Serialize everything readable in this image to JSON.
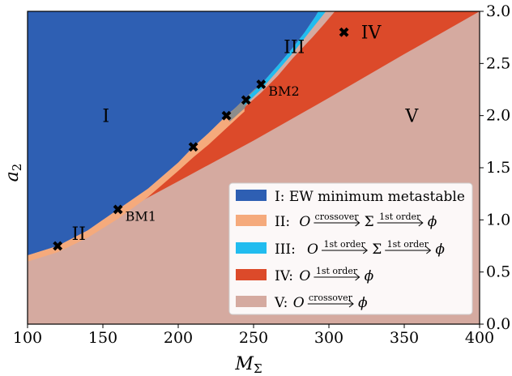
{
  "chart_data": {
    "type": "area",
    "xlabel": "M",
    "xlabel_sub": "Σ",
    "ylabel": "a",
    "ylabel_sub": "2",
    "xlim": [
      100,
      400
    ],
    "ylim": [
      0.0,
      3.0
    ],
    "xticks": [
      "100",
      "150",
      "200",
      "250",
      "300",
      "350",
      "400"
    ],
    "yticks": [
      "0.0",
      "0.5",
      "1.0",
      "1.5",
      "2.0",
      "2.5",
      "3.0"
    ],
    "colors": {
      "I": "#2e5fb3",
      "II": "#f5aa7c",
      "III": "#21bcef",
      "IV": "#dc4a2a",
      "V": "#d5aaa0",
      "marker": "#000000"
    },
    "region_labels": [
      {
        "text": "I",
        "x": 152,
        "y": 2.0
      },
      {
        "text": "II",
        "x": 134,
        "y": 0.87
      },
      {
        "text": "III",
        "x": 277,
        "y": 2.66
      },
      {
        "text": "IV",
        "x": 328,
        "y": 2.8
      },
      {
        "text": "V",
        "x": 355,
        "y": 2.0
      }
    ],
    "boundaries": {
      "upper": [
        [
          100,
          0.66
        ],
        [
          120,
          0.75
        ],
        [
          140,
          0.9
        ],
        [
          160,
          1.1
        ],
        [
          180,
          1.3
        ],
        [
          200,
          1.55
        ],
        [
          210,
          1.7
        ],
        [
          220,
          1.83
        ],
        [
          232,
          2.0
        ],
        [
          244,
          2.15
        ],
        [
          255,
          2.3
        ],
        [
          266,
          2.48
        ],
        [
          276,
          2.65
        ],
        [
          284,
          2.8
        ],
        [
          291,
          2.95
        ],
        [
          293,
          3.0
        ]
      ],
      "blue_cyan": [
        [
          232,
          2.0
        ],
        [
          244,
          2.17
        ],
        [
          255,
          2.33
        ],
        [
          266,
          2.51
        ],
        [
          276,
          2.7
        ],
        [
          284,
          2.86
        ],
        [
          291,
          3.0
        ]
      ],
      "cyan_red": [
        [
          232,
          1.96
        ],
        [
          244,
          2.1
        ],
        [
          255,
          2.25
        ],
        [
          266,
          2.43
        ],
        [
          276,
          2.6
        ],
        [
          287,
          2.8
        ],
        [
          298,
          3.0
        ]
      ],
      "orange_red": [
        [
          160,
          1.1
        ],
        [
          180,
          1.28
        ],
        [
          200,
          1.5
        ],
        [
          210,
          1.63
        ],
        [
          220,
          1.75
        ],
        [
          232,
          1.92
        ],
        [
          244,
          2.08
        ],
        [
          255,
          2.22
        ],
        [
          266,
          2.38
        ],
        [
          276,
          2.55
        ],
        [
          289,
          2.75
        ],
        [
          297,
          2.88
        ],
        [
          304,
          3.0
        ]
      ],
      "upper_orange_lower": [
        [
          100,
          0.6
        ],
        [
          120,
          0.69
        ],
        [
          140,
          0.83
        ],
        [
          160,
          1.01
        ],
        [
          180,
          1.22
        ],
        [
          200,
          1.47
        ],
        [
          210,
          1.6
        ],
        [
          220,
          1.72
        ],
        [
          232,
          1.88
        ],
        [
          244,
          2.04
        ],
        [
          255,
          2.19
        ],
        [
          266,
          2.34
        ],
        [
          276,
          2.51
        ],
        [
          287,
          2.68
        ],
        [
          297,
          2.82
        ],
        [
          306,
          3.0
        ]
      ],
      "red_v": [
        [
          160,
          1.06
        ],
        [
          200,
          1.37
        ],
        [
          250,
          1.76
        ],
        [
          300,
          2.17
        ],
        [
          350,
          2.59
        ],
        [
          400,
          3.0
        ]
      ]
    },
    "benchmarks": [
      {
        "x": 120,
        "y": 0.75,
        "label": ""
      },
      {
        "x": 160,
        "y": 1.1,
        "label": "BM1"
      },
      {
        "x": 210,
        "y": 1.7,
        "label": ""
      },
      {
        "x": 232,
        "y": 2.0,
        "label": ""
      },
      {
        "x": 245,
        "y": 2.15,
        "label": ""
      },
      {
        "x": 255,
        "y": 2.3,
        "label": "BM2"
      },
      {
        "x": 310,
        "y": 2.8,
        "label": ""
      }
    ],
    "legend": {
      "placement": "lower-right",
      "entries": [
        {
          "key": "I",
          "prefix": "I: EW minimum metastable",
          "color_key": "I"
        },
        {
          "key": "II",
          "prefix": "II: ",
          "formula": "O",
          "arrow1": "crossover",
          "mid": "Σ",
          "arrow2": "1st order",
          "end": "ϕ",
          "color_key": "II"
        },
        {
          "key": "III",
          "prefix": "III: ",
          "formula": "O",
          "arrow1": "1st order",
          "mid": "Σ",
          "arrow2": "1st order",
          "end": "ϕ",
          "color_key": "III"
        },
        {
          "key": "IV",
          "prefix": "IV: ",
          "formula": "O",
          "arrow1": "1st order",
          "mid": "",
          "arrow2": "",
          "end": "ϕ",
          "color_key": "IV"
        },
        {
          "key": "V",
          "prefix": "V: ",
          "formula": "O",
          "arrow1": "crossover",
          "mid": "",
          "arrow2": "",
          "end": "ϕ",
          "color_key": "V"
        }
      ]
    }
  }
}
